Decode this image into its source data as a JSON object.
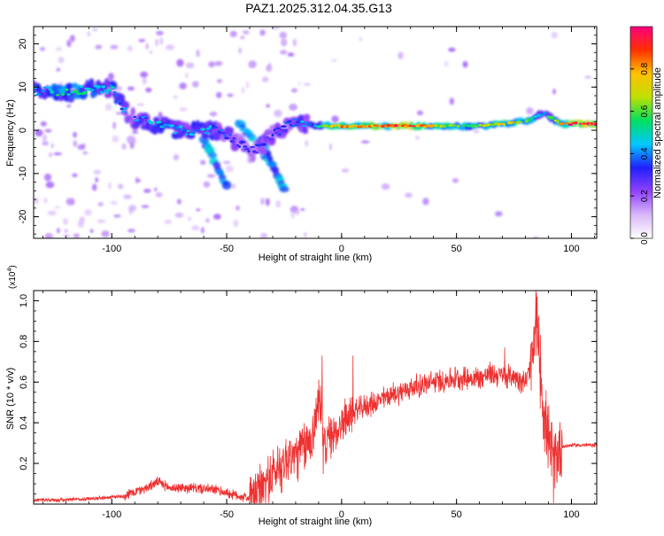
{
  "title": "PAZ1.2025.312.04.35.G13",
  "chart_data": [
    {
      "type": "heatmap",
      "xlabel": "Height of straight line (km)",
      "ylabel": "Frequency (Hz)",
      "xlim": [
        -134,
        111
      ],
      "ylim": [
        -25,
        24
      ],
      "xticks": [
        -100,
        -50,
        0,
        50,
        100
      ],
      "xtick_labels": [
        "-100",
        "-50",
        "0",
        "50",
        "100"
      ],
      "yticks": [
        -20,
        -10,
        0,
        10,
        20
      ],
      "ytick_labels": [
        "-20",
        "-10",
        "0",
        "10",
        "20"
      ],
      "ridge": [
        {
          "x": -130,
          "f": 9,
          "a": 0.45
        },
        {
          "x": -120,
          "f": 9,
          "a": 0.55
        },
        {
          "x": -110,
          "f": 9.5,
          "a": 0.5
        },
        {
          "x": -100,
          "f": 9.5,
          "a": 0.45
        },
        {
          "x": -92,
          "f": 3,
          "a": 0.35
        },
        {
          "x": -85,
          "f": 2,
          "a": 0.4
        },
        {
          "x": -78,
          "f": 1,
          "a": 0.45
        },
        {
          "x": -70,
          "f": 0,
          "a": 0.4
        },
        {
          "x": -60,
          "f": 0,
          "a": 0.45
        },
        {
          "x": -52,
          "f": 0,
          "a": 0.35
        },
        {
          "x": -45,
          "f": -3,
          "a": 0.3
        },
        {
          "x": -38,
          "f": -5,
          "a": 0.3
        },
        {
          "x": -30,
          "f": -1,
          "a": 0.3
        },
        {
          "x": -20,
          "f": 2,
          "a": 0.35
        },
        {
          "x": -10,
          "f": 1,
          "a": 0.5
        },
        {
          "x": 0,
          "f": 1,
          "a": 0.8
        },
        {
          "x": 10,
          "f": 1,
          "a": 0.75
        },
        {
          "x": 20,
          "f": 1,
          "a": 0.85
        },
        {
          "x": 30,
          "f": 1,
          "a": 0.9
        },
        {
          "x": 40,
          "f": 1,
          "a": 0.7
        },
        {
          "x": 50,
          "f": 1,
          "a": 0.6
        },
        {
          "x": 60,
          "f": 1,
          "a": 0.6
        },
        {
          "x": 70,
          "f": 1.5,
          "a": 0.75
        },
        {
          "x": 80,
          "f": 2,
          "a": 0.65
        },
        {
          "x": 88,
          "f": 4,
          "a": 0.4
        },
        {
          "x": 95,
          "f": 1.5,
          "a": 0.7
        },
        {
          "x": 100,
          "f": 1.5,
          "a": 0.95
        },
        {
          "x": 110,
          "f": 1.5,
          "a": 0.95
        }
      ],
      "colorbar": {
        "label": "Normalized spectral amplitude",
        "range": [
          0,
          1
        ],
        "ticks": [
          0.0,
          0.2,
          0.4,
          0.6,
          0.8
        ],
        "tick_labels": [
          "0.0",
          "0.2",
          "0.4",
          "0.6",
          "0.8"
        ],
        "colors": [
          "#ffffff",
          "#d8b8f8",
          "#9040ff",
          "#2020ff",
          "#00c8ff",
          "#00e060",
          "#c0e000",
          "#ffc000",
          "#ff3000",
          "#ff0080"
        ]
      }
    },
    {
      "type": "line",
      "xlabel": "Height of straight line (km)",
      "ylabel": "SNR (10 * v/v)",
      "y_multiplier": "(x10",
      "y_multiplier_exp": "4",
      "y_multiplier_close": ")",
      "xlim": [
        -134,
        111
      ],
      "ylim": [
        0,
        1.05
      ],
      "xticks": [
        -100,
        -50,
        0,
        50,
        100
      ],
      "xtick_labels": [
        "-100",
        "-50",
        "0",
        "50",
        "100"
      ],
      "yticks": [
        0.2,
        0.4,
        0.6,
        0.8,
        1.0
      ],
      "ytick_labels": [
        "0.2",
        "0.4",
        "0.6",
        "0.8",
        "1.0"
      ],
      "line_color": "#ee3030",
      "x": [
        -134,
        -120,
        -105,
        -95,
        -85,
        -80,
        -75,
        -65,
        -55,
        -45,
        -40,
        -36,
        -32,
        -28,
        -24,
        -20,
        -16,
        -12,
        -10,
        -8,
        -5,
        -2,
        0,
        5,
        10,
        15,
        20,
        30,
        40,
        50,
        60,
        65,
        70,
        75,
        80,
        83,
        85,
        86,
        88,
        90,
        92,
        95,
        100,
        111
      ],
      "y": [
        0.02,
        0.02,
        0.03,
        0.04,
        0.08,
        0.11,
        0.08,
        0.08,
        0.07,
        0.04,
        0.03,
        0.05,
        0.12,
        0.17,
        0.22,
        0.24,
        0.28,
        0.35,
        0.55,
        0.3,
        0.32,
        0.36,
        0.4,
        0.45,
        0.48,
        0.5,
        0.53,
        0.57,
        0.6,
        0.62,
        0.62,
        0.64,
        0.63,
        0.63,
        0.6,
        0.7,
        0.88,
        0.75,
        0.45,
        0.3,
        0.2,
        0.28,
        0.29,
        0.29
      ],
      "spikes": [
        {
          "x": -8.5,
          "y": 0.73
        },
        {
          "x": 5,
          "y": 0.73
        },
        {
          "x": 71,
          "y": 0.77
        },
        {
          "x": 83,
          "y": 0.8
        },
        {
          "x": 84.5,
          "y": 1.06
        }
      ]
    }
  ]
}
